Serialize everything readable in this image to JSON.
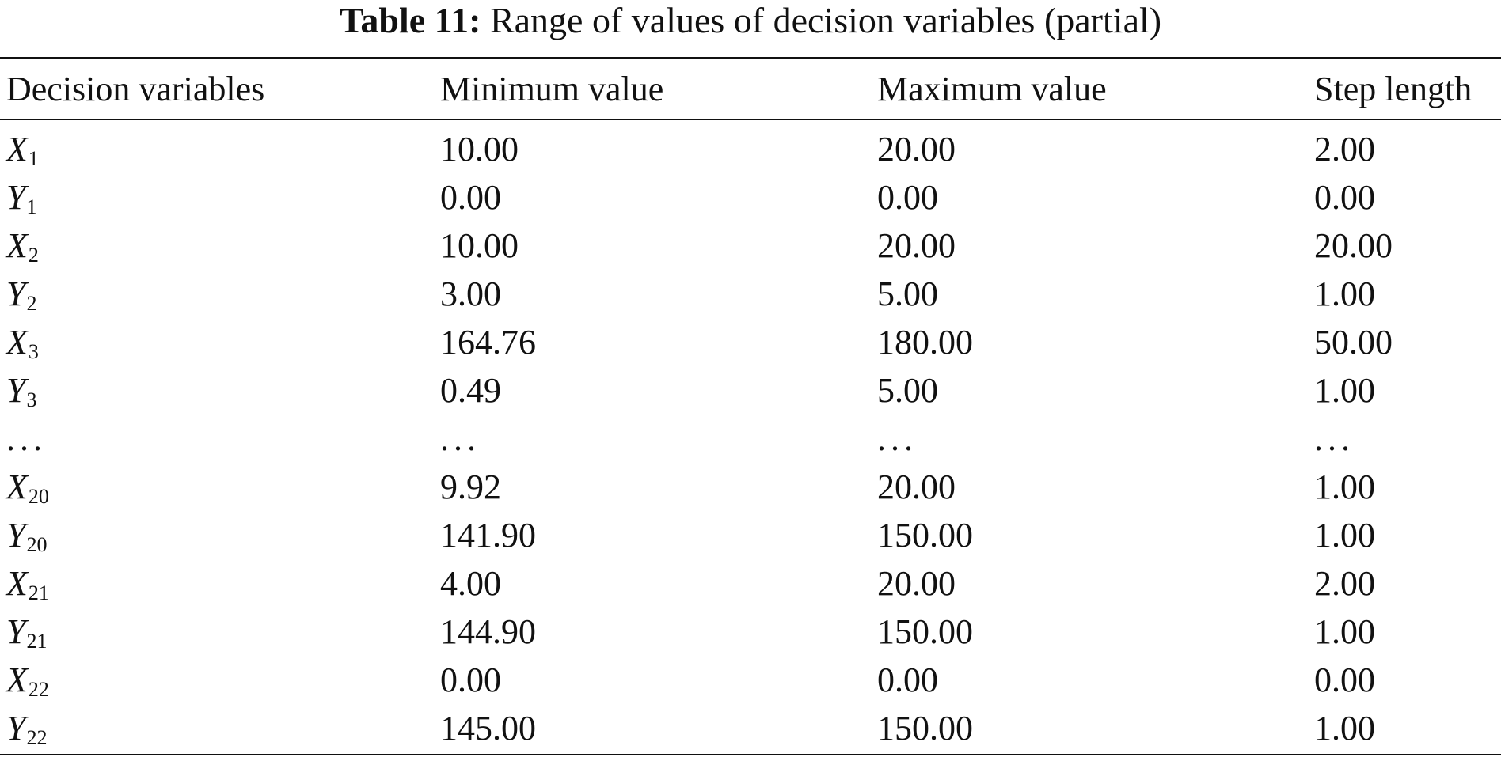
{
  "caption": {
    "label": "Table 11:",
    "text": "Range of values of decision variables (partial)"
  },
  "table": {
    "headers": [
      "Decision variables",
      "Minimum value",
      "Maximum value",
      "Step length"
    ],
    "rows": [
      {
        "var": "X",
        "sub": "1",
        "min": "10.00",
        "max": "20.00",
        "step": "2.00"
      },
      {
        "var": "Y",
        "sub": "1",
        "min": "0.00",
        "max": "0.00",
        "step": "0.00"
      },
      {
        "var": "X",
        "sub": "2",
        "min": "10.00",
        "max": "20.00",
        "step": "20.00"
      },
      {
        "var": "Y",
        "sub": "2",
        "min": "3.00",
        "max": "5.00",
        "step": "1.00"
      },
      {
        "var": "X",
        "sub": "3",
        "min": "164.76",
        "max": "180.00",
        "step": "50.00"
      },
      {
        "var": "Y",
        "sub": "3",
        "min": "0.49",
        "max": "5.00",
        "step": "1.00"
      },
      {
        "ellipsis": "..."
      },
      {
        "var": "X",
        "sub": "20",
        "min": "9.92",
        "max": "20.00",
        "step": "1.00"
      },
      {
        "var": "Y",
        "sub": "20",
        "min": "141.90",
        "max": "150.00",
        "step": "1.00"
      },
      {
        "var": "X",
        "sub": "21",
        "min": "4.00",
        "max": "20.00",
        "step": "2.00"
      },
      {
        "var": "Y",
        "sub": "21",
        "min": "144.90",
        "max": "150.00",
        "step": "1.00"
      },
      {
        "var": "X",
        "sub": "22",
        "min": "0.00",
        "max": "0.00",
        "step": "0.00"
      },
      {
        "var": "Y",
        "sub": "22",
        "min": "145.00",
        "max": "150.00",
        "step": "1.00"
      }
    ]
  }
}
